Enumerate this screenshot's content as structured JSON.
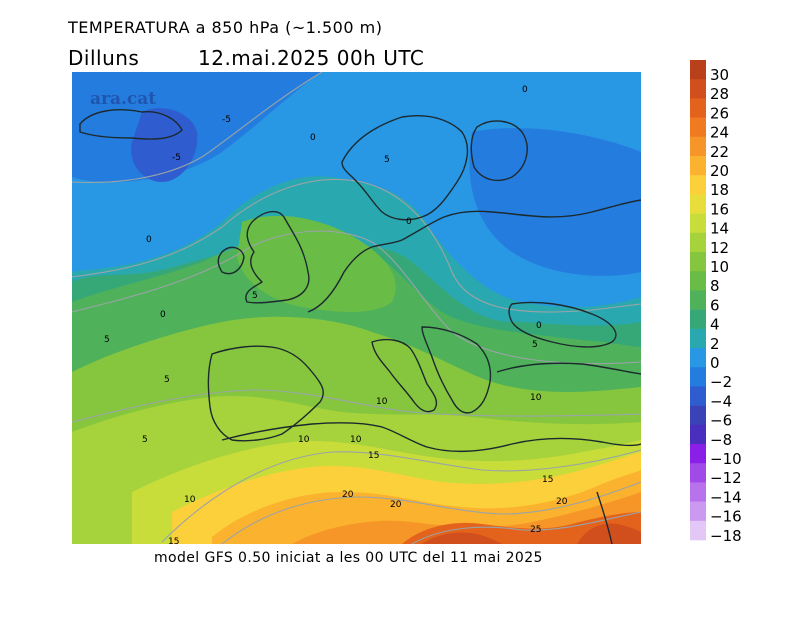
{
  "header": {
    "title": "TEMPERATURA a 850 hPa (~1.500 m)",
    "day": "Dilluns",
    "datetime": "12.mai.2025 00h UTC"
  },
  "map": {
    "watermark": "ara.cat",
    "variable": "temperature_850hPa",
    "units": "°C",
    "isotherm_labels": [
      "0",
      "-5",
      "-5",
      "0",
      "0",
      "5",
      "0",
      "0",
      "0",
      "5",
      "5",
      "5",
      "5",
      "10",
      "10",
      "10",
      "10",
      "15",
      "15",
      "20",
      "20",
      "20",
      "25",
      "10",
      "5",
      "15"
    ]
  },
  "legend": {
    "levels": [
      30,
      28,
      26,
      24,
      22,
      20,
      18,
      16,
      14,
      12,
      10,
      8,
      6,
      4,
      2,
      0,
      -2,
      -4,
      -6,
      -8,
      -10,
      -12,
      -14,
      -16,
      -18
    ],
    "labels": [
      "30",
      "28",
      "26",
      "24",
      "22",
      "20",
      "18",
      "16",
      "14",
      "12",
      "10",
      "8",
      "6",
      "4",
      "2",
      "0",
      "−2",
      "−4",
      "−6",
      "−8",
      "−10",
      "−12",
      "−14",
      "−16",
      "−18"
    ],
    "colors": [
      "#b8401a",
      "#d04f1c",
      "#e3621c",
      "#f07a20",
      "#f79628",
      "#fbb22e",
      "#fcd03a",
      "#e9dd3c",
      "#c8dc3a",
      "#a6d23c",
      "#86c63e",
      "#69bc45",
      "#4fb15a",
      "#36a878",
      "#2aa8b0",
      "#2897e4",
      "#257cdf",
      "#2f5dcf",
      "#3a42b8",
      "#4a2fbf",
      "#8a20e8",
      "#a04ae8",
      "#b872ec",
      "#cc99f0",
      "#e3c7f6"
    ]
  },
  "footer": {
    "note": "model GFS 0.50 iniciat a les 00 UTC del 11 mai 2025"
  }
}
